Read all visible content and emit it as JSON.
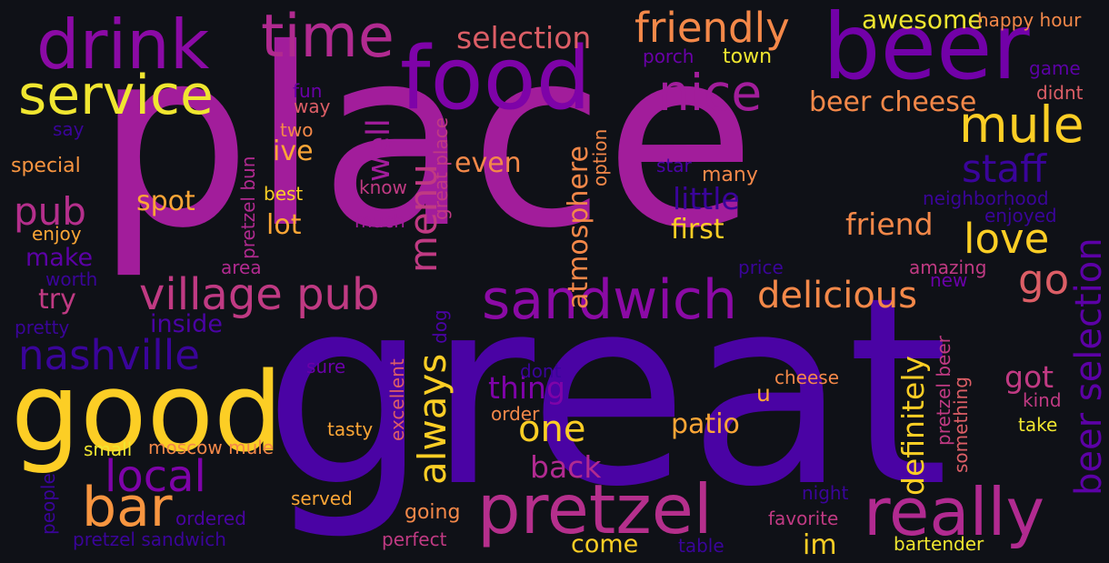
{
  "palette": [
    "#0d0887",
    "#2d06a0",
    "#5402a3",
    "#7e03a8",
    "#a21d9b",
    "#c03a83",
    "#dc5e66",
    "#ed7953",
    "#fba238",
    "#fcce25",
    "#f0f921"
  ],
  "words": [
    {
      "id": "place",
      "text": "place",
      "color": "#a21d9b"
    },
    {
      "id": "great",
      "text": "great",
      "color": "#4a03a4"
    },
    {
      "id": "good",
      "text": "good",
      "color": "#fcce25"
    },
    {
      "id": "food",
      "text": "food",
      "color": "#7e03a8"
    },
    {
      "id": "beer",
      "text": "beer",
      "color": "#7201a8"
    },
    {
      "id": "drink",
      "text": "drink",
      "color": "#8b0aa5"
    },
    {
      "id": "time",
      "text": "time",
      "color": "#b12a90"
    },
    {
      "id": "service",
      "text": "service",
      "color": "#f0e630"
    },
    {
      "id": "pretzel",
      "text": "pretzel",
      "color": "#b52f8c"
    },
    {
      "id": "sandwich",
      "text": "sandwich",
      "color": "#8b0aa5"
    },
    {
      "id": "really",
      "text": "really",
      "color": "#b12a90"
    },
    {
      "id": "bar",
      "text": "bar",
      "color": "#f89540"
    },
    {
      "id": "nice",
      "text": "nice",
      "color": "#a21d9b"
    },
    {
      "id": "mule",
      "text": "mule",
      "color": "#fcce25"
    },
    {
      "id": "village-pub",
      "text": "village pub",
      "color": "#c03a83"
    },
    {
      "id": "nashville",
      "text": "nashville",
      "color": "#3a049a"
    },
    {
      "id": "friendly",
      "text": "friendly",
      "color": "#f48849"
    },
    {
      "id": "selection",
      "text": "selection",
      "color": "#dc5e66"
    },
    {
      "id": "beer-selection",
      "text": "beer selection",
      "color": "#5c01a6"
    },
    {
      "id": "delicious",
      "text": "delicious",
      "color": "#f48849"
    },
    {
      "id": "love",
      "text": "love",
      "color": "#fcce25"
    },
    {
      "id": "staff",
      "text": "staff",
      "color": "#3a049a"
    },
    {
      "id": "local",
      "text": "local",
      "color": "#7e03a8"
    },
    {
      "id": "always",
      "text": "always",
      "color": "#fcce25"
    },
    {
      "id": "menu",
      "text": "menu",
      "color": "#c03a83"
    },
    {
      "id": "pub",
      "text": "pub",
      "color": "#b52f8c"
    },
    {
      "id": "one",
      "text": "one",
      "color": "#fcce25"
    },
    {
      "id": "go",
      "text": "go",
      "color": "#dc5e66"
    },
    {
      "id": "beer-cheese",
      "text": "beer cheese",
      "color": "#f48849"
    },
    {
      "id": "definitely",
      "text": "definitely",
      "color": "#fcce25"
    },
    {
      "id": "atmosphere",
      "text": "atmosphere",
      "color": "#f48849"
    },
    {
      "id": "friend",
      "text": "friend",
      "color": "#f48849"
    },
    {
      "id": "back",
      "text": "back",
      "color": "#b12a90"
    },
    {
      "id": "well",
      "text": "well",
      "color": "#a21d9b"
    },
    {
      "id": "thing",
      "text": "thing",
      "color": "#7e03a8"
    },
    {
      "id": "patio",
      "text": "patio",
      "color": "#fca636"
    },
    {
      "id": "got",
      "text": "got",
      "color": "#c03a83"
    },
    {
      "id": "little",
      "text": "little",
      "color": "#3a049a"
    },
    {
      "id": "awesome",
      "text": "awesome",
      "color": "#f0e630"
    },
    {
      "id": "even",
      "text": "even",
      "color": "#f48849"
    },
    {
      "id": "spot",
      "text": "spot",
      "color": "#fca636"
    },
    {
      "id": "try",
      "text": "try",
      "color": "#c03a83"
    },
    {
      "id": "first",
      "text": "first",
      "color": "#fcce25"
    },
    {
      "id": "ive",
      "text": "ive",
      "color": "#fca636"
    },
    {
      "id": "lot",
      "text": "lot",
      "color": "#fca636"
    },
    {
      "id": "inside",
      "text": "inside",
      "color": "#4a03a4"
    },
    {
      "id": "make",
      "text": "make",
      "color": "#5c01a6"
    },
    {
      "id": "come",
      "text": "come",
      "color": "#fcce25"
    },
    {
      "id": "im",
      "text": "im",
      "color": "#fcce25"
    },
    {
      "id": "happy-hour",
      "text": "happy hour",
      "color": "#f48849"
    },
    {
      "id": "porch",
      "text": "porch",
      "color": "#6a00a8"
    },
    {
      "id": "town",
      "text": "town",
      "color": "#f0e630"
    },
    {
      "id": "game",
      "text": "game",
      "color": "#5c01a6"
    },
    {
      "id": "didnt",
      "text": "didnt",
      "color": "#dc5e66"
    },
    {
      "id": "fun",
      "text": "fun",
      "color": "#6a00a8"
    },
    {
      "id": "way",
      "text": "way",
      "color": "#dc5e66"
    },
    {
      "id": "say",
      "text": "say",
      "color": "#3a049a"
    },
    {
      "id": "two",
      "text": "two",
      "color": "#f48849"
    },
    {
      "id": "special",
      "text": "special",
      "color": "#f89540"
    },
    {
      "id": "pretzel-bun",
      "text": "pretzel bun",
      "color": "#b12a90"
    },
    {
      "id": "best",
      "text": "best",
      "color": "#fcce25"
    },
    {
      "id": "know",
      "text": "know",
      "color": "#c03a83"
    },
    {
      "id": "great-place",
      "text": "great place",
      "color": "#c03a83"
    },
    {
      "id": "option",
      "text": "option",
      "color": "#f48849"
    },
    {
      "id": "star",
      "text": "star",
      "color": "#4a03a4"
    },
    {
      "id": "many",
      "text": "many",
      "color": "#f48849"
    },
    {
      "id": "neighborhood",
      "text": "neighborhood",
      "color": "#3a049a"
    },
    {
      "id": "enjoyed",
      "text": "enjoyed",
      "color": "#3a049a"
    },
    {
      "id": "much",
      "text": "much",
      "color": "#a21d9b"
    },
    {
      "id": "enjoy",
      "text": "enjoy",
      "color": "#fca636"
    },
    {
      "id": "area",
      "text": "area",
      "color": "#b12a90"
    },
    {
      "id": "price",
      "text": "price",
      "color": "#3a049a"
    },
    {
      "id": "amazing",
      "text": "amazing",
      "color": "#c03a83"
    },
    {
      "id": "worth",
      "text": "worth",
      "color": "#3a049a"
    },
    {
      "id": "new",
      "text": "new",
      "color": "#6a00a8"
    },
    {
      "id": "pretty",
      "text": "pretty",
      "color": "#3a049a"
    },
    {
      "id": "dog",
      "text": "dog",
      "color": "#4a03a4"
    },
    {
      "id": "sure",
      "text": "sure",
      "color": "#6a00a8"
    },
    {
      "id": "excellent",
      "text": "excellent",
      "color": "#dc5e66"
    },
    {
      "id": "dont",
      "text": "dont",
      "color": "#3a049a"
    },
    {
      "id": "cheese",
      "text": "cheese",
      "color": "#f48849"
    },
    {
      "id": "u",
      "text": "u",
      "color": "#fca636"
    },
    {
      "id": "pretzel-beer",
      "text": "pretzel beer",
      "color": "#c03a83"
    },
    {
      "id": "kind",
      "text": "kind",
      "color": "#c03a83"
    },
    {
      "id": "something",
      "text": "something",
      "color": "#dc5e66"
    },
    {
      "id": "order",
      "text": "order",
      "color": "#f48849"
    },
    {
      "id": "tasty",
      "text": "tasty",
      "color": "#fca636"
    },
    {
      "id": "take",
      "text": "take",
      "color": "#f0e630"
    },
    {
      "id": "small",
      "text": "small",
      "color": "#f0e630"
    },
    {
      "id": "moscow-mule",
      "text": "moscow mule",
      "color": "#f48849"
    },
    {
      "id": "people",
      "text": "people",
      "color": "#3a049a"
    },
    {
      "id": "served",
      "text": "served",
      "color": "#fca636"
    },
    {
      "id": "night",
      "text": "night",
      "color": "#3a049a"
    },
    {
      "id": "favorite",
      "text": "favorite",
      "color": "#c03a83"
    },
    {
      "id": "ordered",
      "text": "ordered",
      "color": "#4a03a4"
    },
    {
      "id": "going",
      "text": "going",
      "color": "#f48849"
    },
    {
      "id": "pretzel-sandwich",
      "text": "pretzel sandwich",
      "color": "#3a049a"
    },
    {
      "id": "perfect",
      "text": "perfect",
      "color": "#c03a83"
    },
    {
      "id": "table",
      "text": "table",
      "color": "#3a049a"
    },
    {
      "id": "bartender",
      "text": "bartender",
      "color": "#f0e630"
    }
  ]
}
